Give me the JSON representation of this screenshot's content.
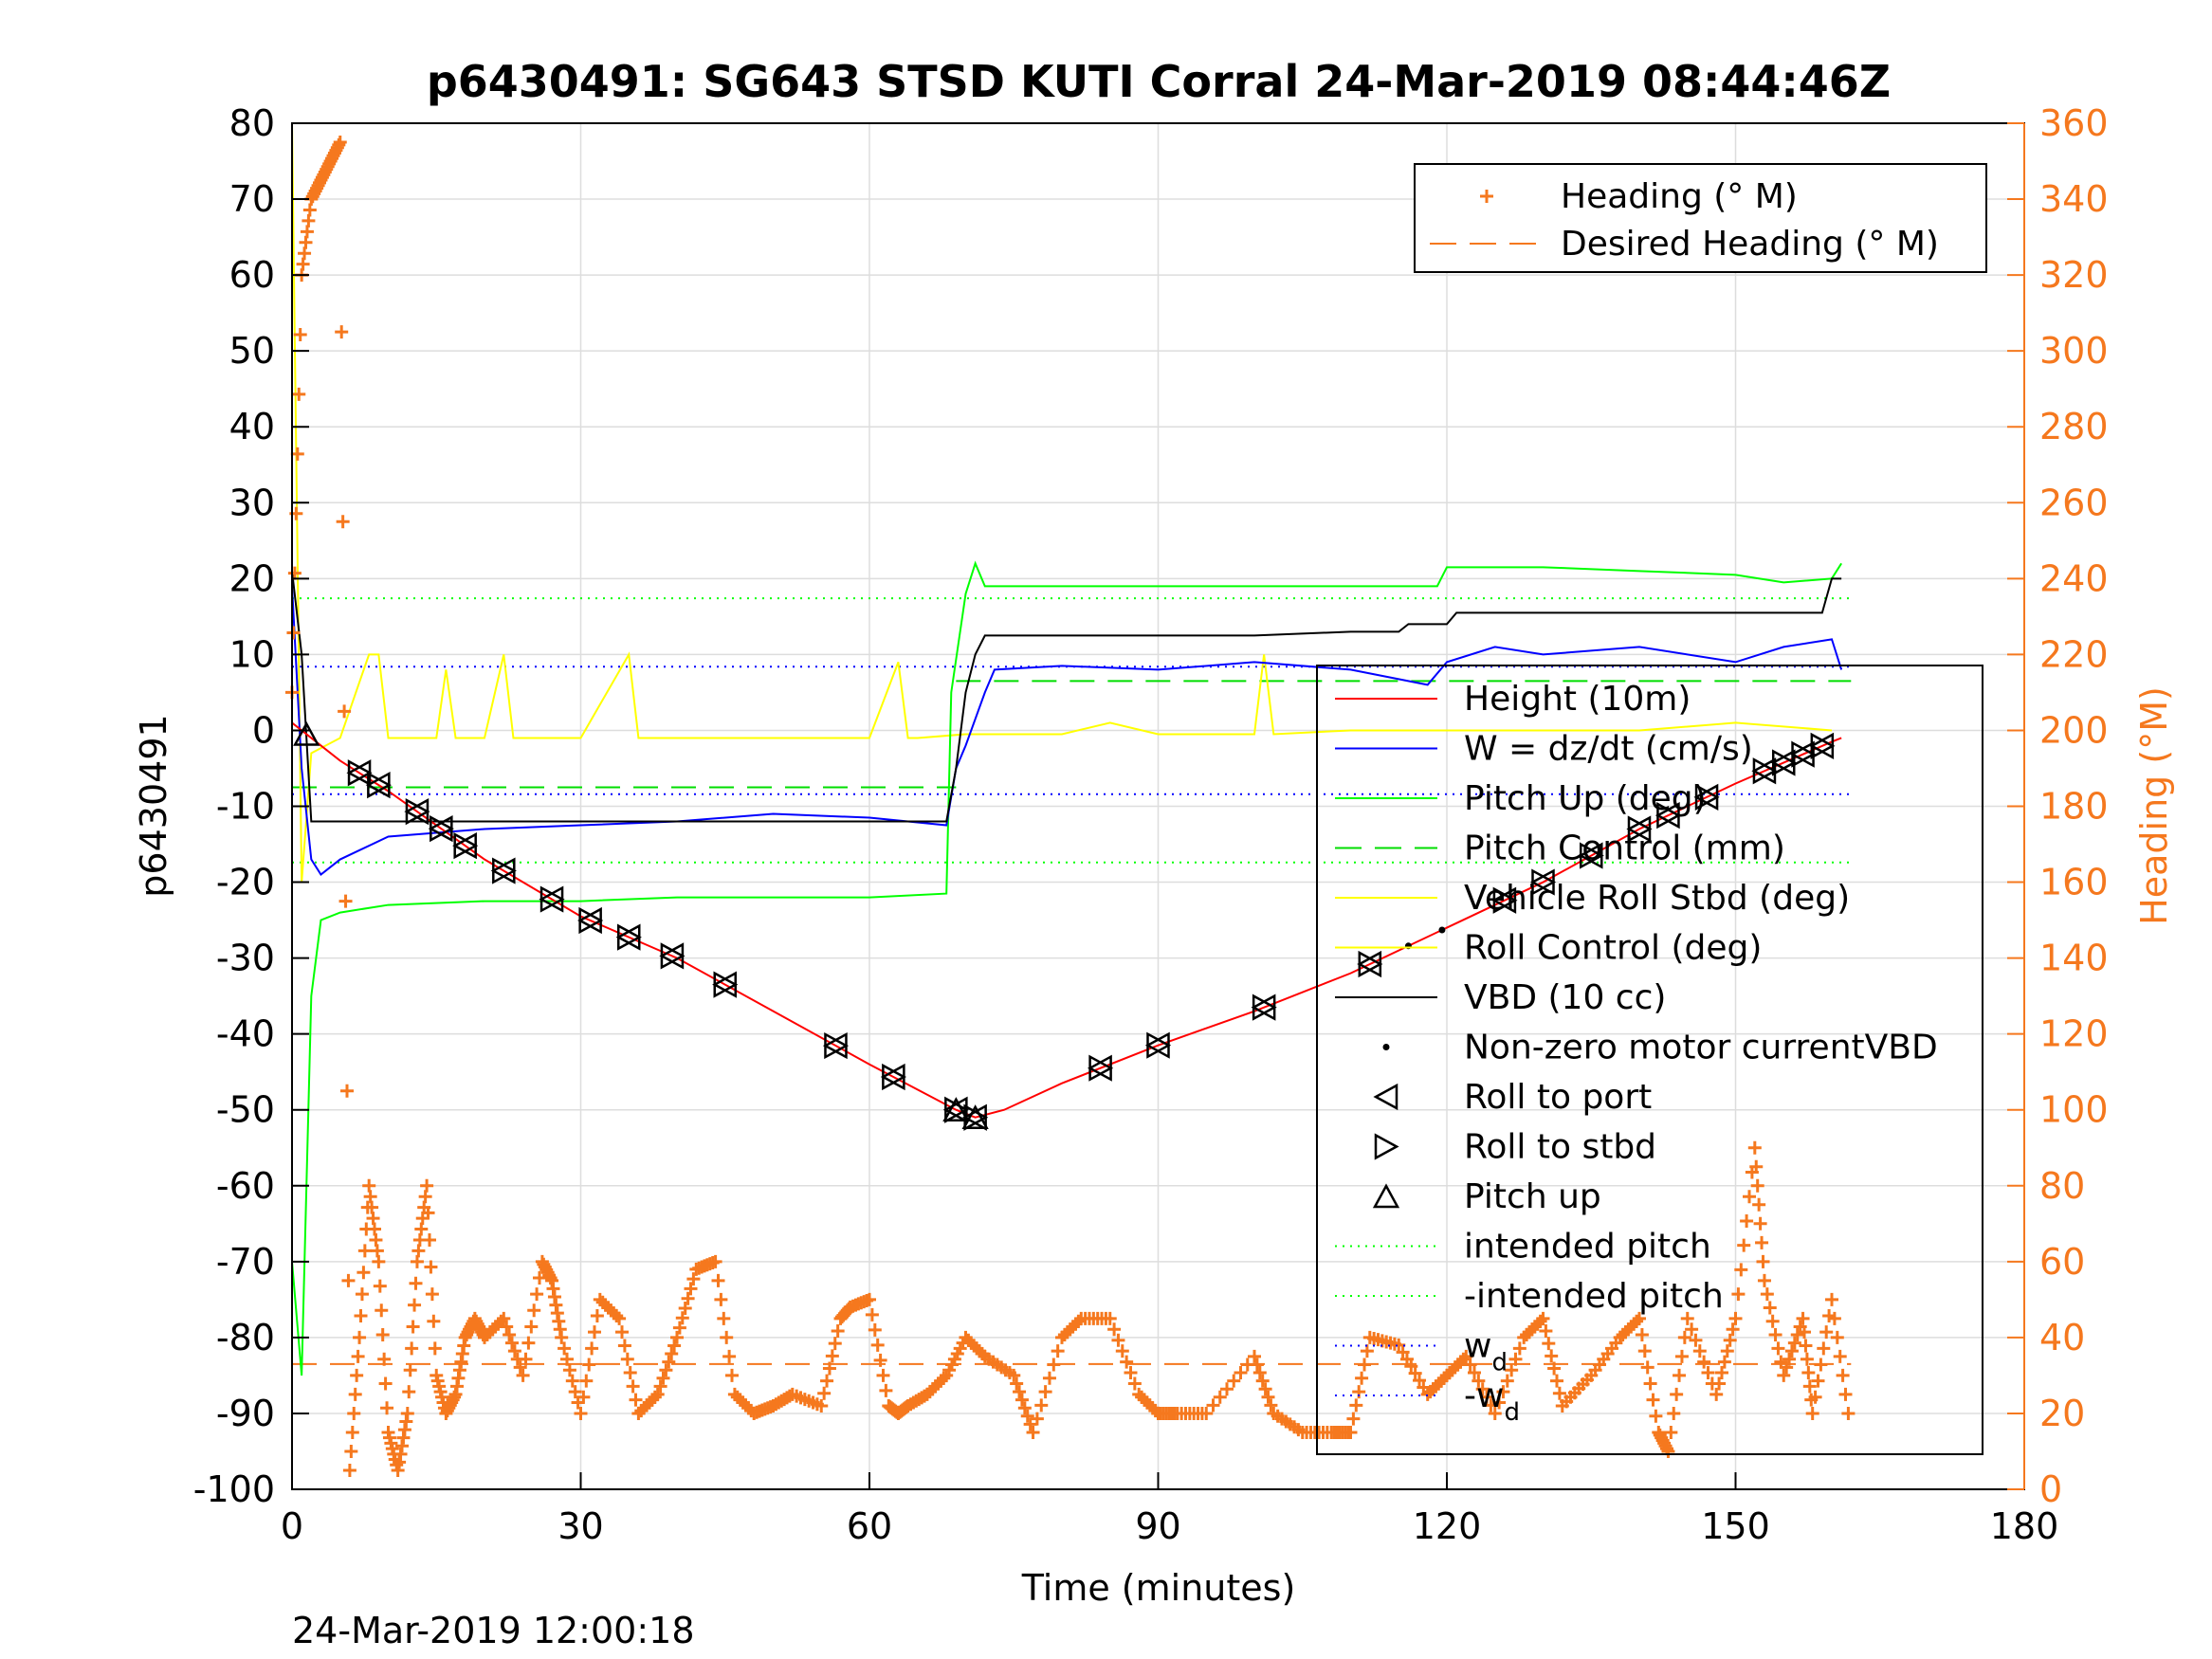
{
  "chart_data": {
    "type": "line",
    "title": "p6430491: SG643 STSD KUTI Corral 24-Mar-2019 08:44:46Z",
    "xlabel": "Time (minutes)",
    "ylabel_left": "p6430491",
    "ylabel_right": "Heading (°M)",
    "footer": "24-Mar-2019 12:00:18",
    "xlim": [
      0,
      180
    ],
    "ylim_left": [
      -100,
      80
    ],
    "ylim_right": [
      0,
      360
    ],
    "x_ticks": [
      "0",
      "30",
      "60",
      "90",
      "120",
      "150",
      "180"
    ],
    "y_ticks_left": [
      "80",
      "70",
      "60",
      "50",
      "40",
      "30",
      "20",
      "10",
      "0",
      "-10",
      "-20",
      "-30",
      "-40",
      "-50",
      "-60",
      "-70",
      "-80",
      "-90",
      "-100"
    ],
    "y_ticks_right": [
      "360",
      "340",
      "320",
      "300",
      "280",
      "260",
      "240",
      "220",
      "200",
      "180",
      "160",
      "140",
      "120",
      "100",
      "80",
      "60",
      "40",
      "20",
      "0"
    ],
    "grid": true,
    "legend_top": [
      {
        "label": "Heading (° M)",
        "color": "#f5781e",
        "style": "plus"
      },
      {
        "label": "Desired Heading (° M)",
        "color": "#f5781e",
        "style": "dashed"
      }
    ],
    "legend_main": [
      {
        "label": "Height (10m)",
        "color": "#ff0000",
        "style": "line"
      },
      {
        "label": "W = dz/dt (cm/s)",
        "color": "#0000ff",
        "style": "line"
      },
      {
        "label": "Pitch Up (deg)",
        "color": "#00ff00",
        "style": "line"
      },
      {
        "label": "Pitch Control (mm)",
        "color": "#00dd00",
        "style": "dashed"
      },
      {
        "label": "Vehicle Roll Stbd (deg)",
        "color": "#ffff00",
        "style": "line"
      },
      {
        "label": "Roll Control (deg)",
        "color": "#ffff00",
        "style": "line"
      },
      {
        "label": "VBD (10 cc)",
        "color": "#000000",
        "style": "line"
      },
      {
        "label": "Non-zero motor currentVBD",
        "color": "#000000",
        "style": "dot"
      },
      {
        "label": "Roll to port",
        "color": "#000000",
        "style": "tri-left"
      },
      {
        "label": "Roll to stbd",
        "color": "#000000",
        "style": "tri-right"
      },
      {
        "label": "Pitch up",
        "color": "#000000",
        "style": "tri-up"
      },
      {
        "label": "intended pitch",
        "color": "#00ff00",
        "style": "dotted"
      },
      {
        "label": "-intended pitch",
        "color": "#00ff00",
        "style": "dotted"
      },
      {
        "label": "w",
        "sub": "d",
        "color": "#0000ff",
        "style": "dotted"
      },
      {
        "label": "-w",
        "sub": "d",
        "color": "#0000ff",
        "style": "dotted"
      }
    ],
    "reference_lines": {
      "intended_pitch": 17.4,
      "neg_intended_pitch": -17.4,
      "w_d": 8.4,
      "neg_w_d": -8.4,
      "pitch_control_dive": -7.5,
      "pitch_control_climb": 6.5,
      "desired_heading": 33
    },
    "series": [
      {
        "name": "Height (10m)",
        "x": [
          0,
          1,
          2,
          5,
          10,
          20,
          30,
          40,
          50,
          60,
          69,
          71,
          74,
          80,
          90,
          100,
          110,
          120,
          130,
          140,
          150,
          160,
          161
        ],
        "y": [
          1,
          0,
          -1,
          -4,
          -8,
          -17,
          -24.5,
          -30,
          -37,
          -44,
          -50,
          -51,
          -50,
          -46.5,
          -41.5,
          -37,
          -32,
          -26,
          -20,
          -13,
          -7,
          -1.5,
          -1
        ]
      },
      {
        "name": "W = dz/dt (cm/s)",
        "x": [
          0,
          1,
          2,
          3,
          5,
          10,
          20,
          30,
          40,
          50,
          60,
          68,
          69,
          70,
          72,
          73,
          80,
          90,
          100,
          110,
          118,
          120,
          125,
          130,
          140,
          150,
          155,
          160,
          161
        ],
        "y": [
          19,
          -5,
          -17,
          -19,
          -17,
          -14,
          -13,
          -12.5,
          -12,
          -11,
          -11.5,
          -12.5,
          -5,
          -2,
          5,
          8,
          8.5,
          8,
          9,
          8,
          6,
          9,
          11,
          10,
          11,
          9,
          11,
          12,
          8
        ]
      },
      {
        "name": "Pitch Up (deg)",
        "x": [
          0,
          1,
          2,
          3,
          5,
          10,
          20,
          30,
          40,
          50,
          60,
          68,
          68.5,
          70,
          71,
          72,
          80,
          90,
          100,
          110,
          119,
          120,
          130,
          140,
          150,
          155,
          160,
          161
        ],
        "y": [
          -70,
          -85,
          -35,
          -25,
          -24,
          -23,
          -22.5,
          -22.5,
          -22,
          -22,
          -22,
          -21.5,
          5,
          18,
          22,
          19,
          19,
          19,
          19,
          19,
          19,
          21.5,
          21.5,
          21,
          20.5,
          19.5,
          20,
          22
        ]
      },
      {
        "name": "Vehicle Roll Stbd (deg)",
        "x": [
          0,
          1,
          2,
          5,
          8,
          9,
          10,
          15,
          16,
          17,
          20,
          22,
          23,
          25,
          30,
          35,
          36,
          37,
          40,
          45,
          50,
          55,
          60,
          63,
          64,
          65,
          70,
          80,
          85,
          90,
          100,
          101,
          102,
          110,
          120,
          130,
          140,
          150,
          160
        ],
        "y": [
          80,
          -20,
          -3,
          -1,
          10,
          10,
          -1,
          -1,
          8,
          -1,
          -1,
          10,
          -1,
          -1,
          -1,
          10,
          -1,
          -1,
          -1,
          -1,
          -1,
          -1,
          -1,
          9,
          -1,
          -1,
          -0.5,
          -0.5,
          1,
          -0.5,
          -0.5,
          10,
          -0.5,
          0,
          0,
          0,
          0,
          1,
          0
        ]
      },
      {
        "name": "VBD (10 cc)",
        "x": [
          0,
          1,
          2,
          10,
          20,
          30,
          40,
          50,
          60,
          68,
          69,
          70,
          71,
          72,
          80,
          90,
          100,
          110,
          115,
          116,
          120,
          121,
          130,
          140,
          150,
          159,
          160,
          161
        ],
        "y": [
          21,
          10,
          -12,
          -12,
          -12,
          -12,
          -12,
          -12,
          -12,
          -12,
          -5,
          5,
          10,
          12.5,
          12.5,
          12.5,
          12.5,
          13,
          13,
          14,
          14,
          15.5,
          15.5,
          15.5,
          15.5,
          15.5,
          20,
          20
        ]
      },
      {
        "name": "Heading (° M)",
        "x": [
          0,
          1,
          2,
          3,
          4,
          5,
          6,
          7,
          8,
          9,
          10,
          11,
          12,
          13,
          14,
          15,
          16,
          17,
          18,
          19,
          20,
          22,
          24,
          26,
          27,
          28,
          30,
          32,
          34,
          36,
          38,
          40,
          42,
          44,
          46,
          48,
          50,
          52,
          55,
          57,
          58,
          60,
          62,
          63,
          64,
          66,
          68,
          70,
          72,
          75,
          77,
          80,
          82,
          85,
          88,
          90,
          92,
          95,
          100,
          102,
          105,
          108,
          110,
          112,
          115,
          118,
          120,
          122,
          125,
          128,
          130,
          132,
          135,
          138,
          140,
          142,
          143,
          145,
          148,
          150,
          152,
          153,
          155,
          157,
          158,
          160,
          162
        ],
        "y": [
          210,
          320,
          340,
          345,
          350,
          355,
          5,
          40,
          80,
          60,
          15,
          5,
          20,
          60,
          80,
          30,
          20,
          25,
          40,
          45,
          40,
          45,
          30,
          60,
          55,
          40,
          20,
          50,
          45,
          20,
          25,
          40,
          58,
          60,
          25,
          20,
          22,
          25,
          22,
          45,
          48,
          50,
          22,
          20,
          22,
          25,
          30,
          40,
          35,
          30,
          15,
          40,
          45,
          45,
          25,
          20,
          20,
          20,
          35,
          20,
          15,
          15,
          15,
          40,
          38,
          25,
          30,
          35,
          20,
          40,
          45,
          22,
          30,
          40,
          45,
          15,
          10,
          45,
          25,
          45,
          90,
          55,
          30,
          45,
          20,
          50,
          15
        ]
      }
    ]
  }
}
